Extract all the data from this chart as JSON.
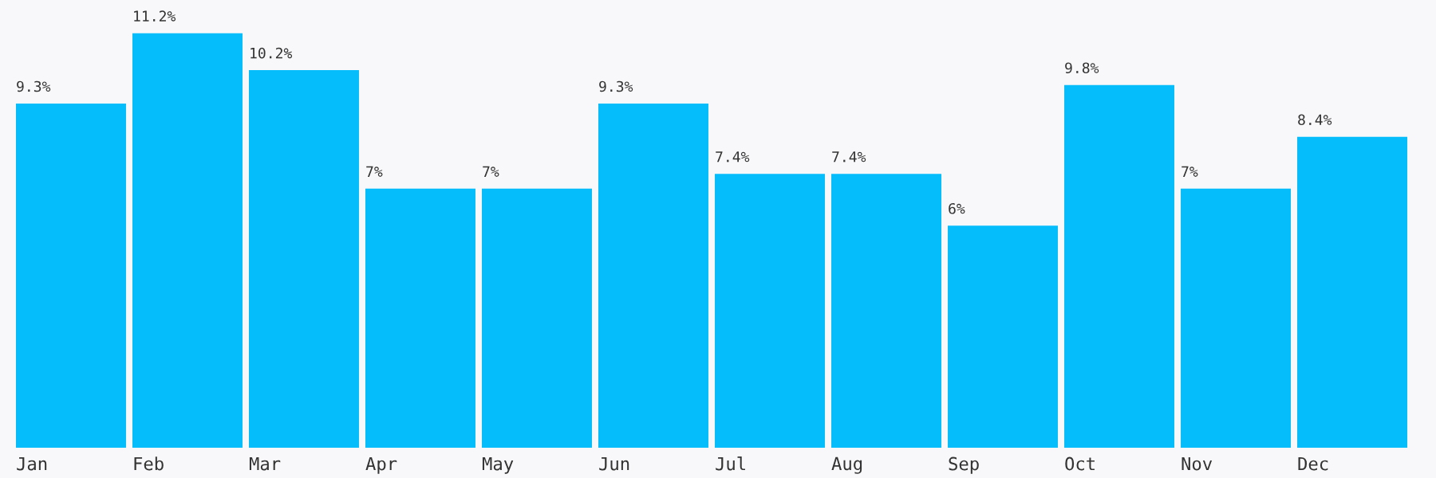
{
  "chart_data": {
    "type": "bar",
    "categories": [
      "Jan",
      "Feb",
      "Mar",
      "Apr",
      "May",
      "Jun",
      "Jul",
      "Aug",
      "Sep",
      "Oct",
      "Nov",
      "Dec"
    ],
    "values": [
      9.3,
      11.2,
      10.2,
      7,
      7,
      9.3,
      7.4,
      7.4,
      6,
      9.8,
      7,
      8.4
    ],
    "value_labels": [
      "9.3%",
      "11.2%",
      "10.2%",
      "7%",
      "7%",
      "9.3%",
      "7.4%",
      "7.4%",
      "6%",
      "9.8%",
      "7%",
      "8.4%"
    ],
    "color": "#06bdfc"
  }
}
